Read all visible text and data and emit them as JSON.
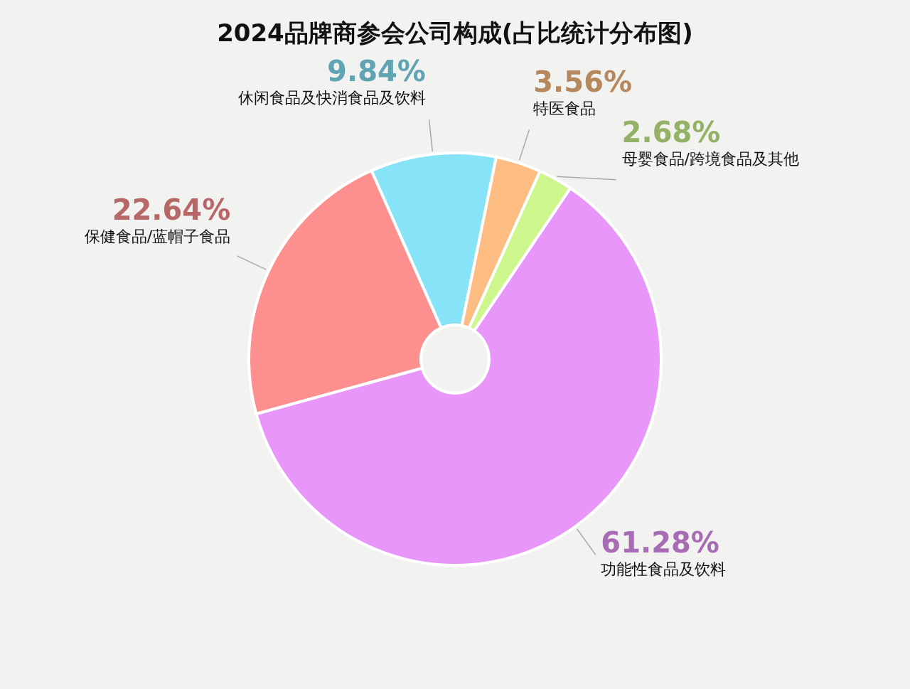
{
  "chart_data": {
    "type": "pie",
    "title": "2024品牌商参会公司构成(占比统计分布图)",
    "categories": [
      "功能性食品及饮料",
      "保健食品/蓝帽子食品",
      "休闲食品及快消食品及饮料",
      "特医食品",
      "母婴食品/跨境食品及其他"
    ],
    "values": [
      61.28,
      22.64,
      9.84,
      3.56,
      2.68
    ],
    "colors": [
      "#e896f9",
      "#fe8f8f",
      "#86e3f8",
      "#fdbd82",
      "#cdf78c"
    ],
    "value_labels": [
      "61.28%",
      "22.64%",
      "9.84%",
      "3.56%",
      "2.68%"
    ]
  }
}
